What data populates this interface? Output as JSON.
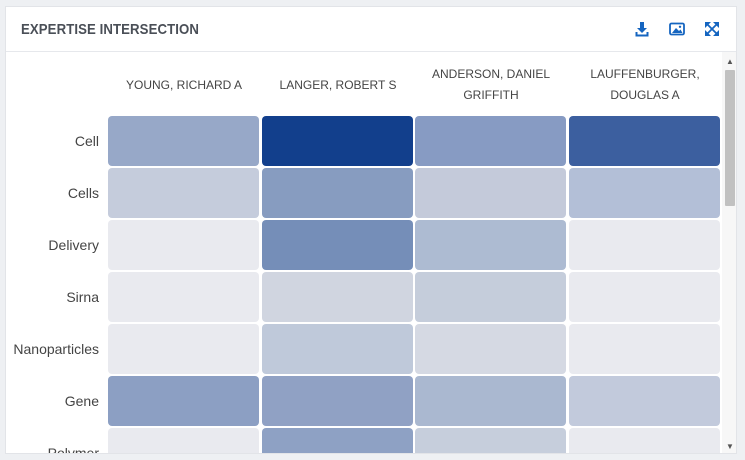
{
  "panel": {
    "title": "EXPERTISE INTERSECTION",
    "accent_color": "#1565c0",
    "icons": [
      "download-icon",
      "image-icon",
      "expand-icon"
    ]
  },
  "heatmap": {
    "columns": [
      "YOUNG, RICHARD A",
      "LANGER, ROBERT S",
      "ANDERSON, DANIEL GRIFFITH",
      "LAUFFENBURGER, DOUGLAS A"
    ],
    "rows": [
      {
        "label": "Cell",
        "colors": [
          "#97a8c8",
          "#123f8c",
          "#879bc3",
          "#3c5f9f"
        ]
      },
      {
        "label": "Cells",
        "colors": [
          "#c5ccdc",
          "#879cc0",
          "#c4cada",
          "#b3bfd7"
        ]
      },
      {
        "label": "Delivery",
        "colors": [
          "#e9eaef",
          "#758eb8",
          "#adbbd2",
          "#e9eaef"
        ]
      },
      {
        "label": "Sirna",
        "colors": [
          "#e9eaef",
          "#d0d5e0",
          "#c5cddb",
          "#e9eaef"
        ]
      },
      {
        "label": "Nanoparticles",
        "colors": [
          "#e9eaef",
          "#bfc9da",
          "#d5d9e3",
          "#e9eaef"
        ]
      },
      {
        "label": "Gene",
        "colors": [
          "#8c9fc3",
          "#90a1c4",
          "#aab8d0",
          "#c2cadc"
        ]
      },
      {
        "label": "Polymer",
        "colors": [
          "#e9eaef",
          "#8ea1c4",
          "#c6cedc",
          "#e9eaef"
        ]
      }
    ]
  }
}
